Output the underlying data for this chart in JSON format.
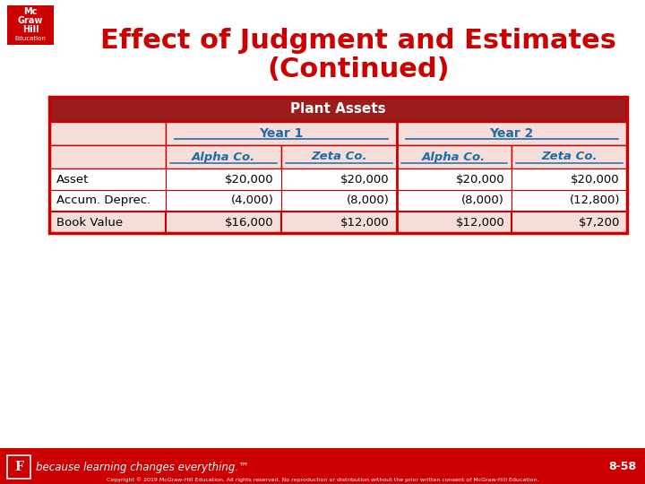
{
  "title_line1": "Effect of Judgment and Estimates",
  "title_line2": "(Continued)",
  "title_color": "#CC0000",
  "bg_color": "#FFFFFF",
  "footer_bg": "#CC0000",
  "footer_text": "because learning changes everything.™",
  "slide_number": "8-58",
  "table_header": "Plant Assets",
  "table_header_bg": "#9B1C1C",
  "table_header_text": "#FFFFFF",
  "year_row_bg": "#F5DDD9",
  "year1_label": "Year 1",
  "year2_label": "Year 2",
  "col_headers": [
    "Alpha Co.",
    "Zeta Co.",
    "Alpha Co.",
    "Zeta Co."
  ],
  "col_header_color": "#1F6CA8",
  "row_labels": [
    "Asset",
    "Accum. Deprec.",
    "Book Value"
  ],
  "row_label_color": "#000000",
  "data_rows": [
    [
      "$20,000",
      "$20,000",
      "$20,000",
      "$20,000"
    ],
    [
      "(4,000)",
      "(8,000)",
      "(8,000)",
      "(12,800)"
    ],
    [
      "$16,000",
      "$12,000",
      "$12,000",
      "$7,200"
    ]
  ],
  "data_color": "#000000",
  "cell_bg_normal": "#FFFFFF",
  "table_border_color": "#CC0000",
  "logo_box_color": "#CC0000",
  "copyright_text": "Copyright © 2019 McGraw-Hill Education. All rights reserved. No reproduction or distribution without the prior written consent of McGraw-Hill Education."
}
